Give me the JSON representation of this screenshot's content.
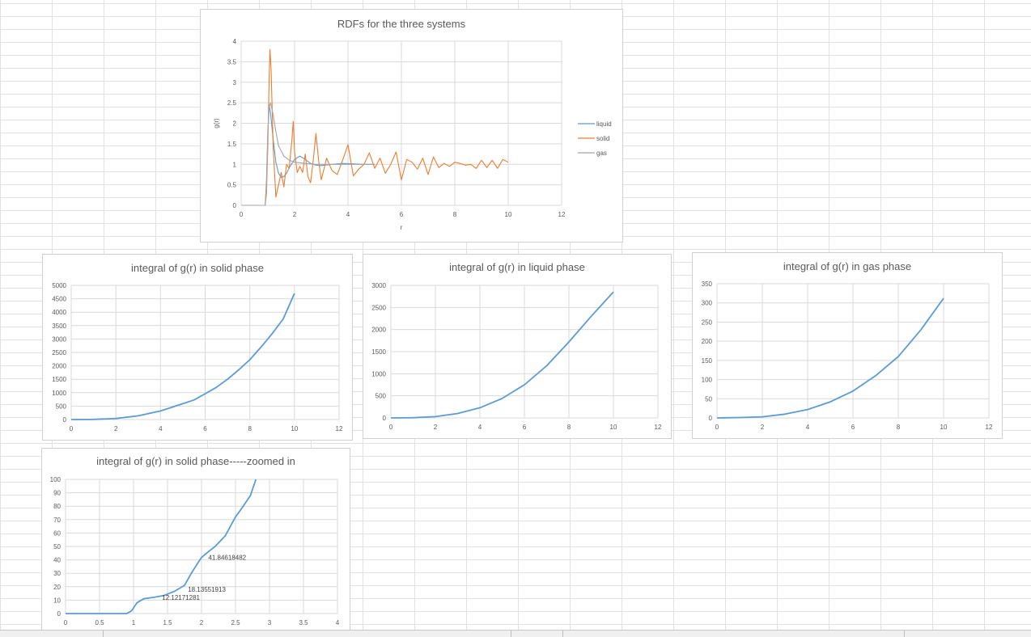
{
  "colors": {
    "liquid": "#5b9bd5",
    "solid": "#ed7d31",
    "gas": "#a5a5a5",
    "integral": "#5b9bd5",
    "gridline": "#d9d9d9",
    "axis_text": "#595959",
    "sheet_grid": "#e1e1e1"
  },
  "chart_data": [
    {
      "type": "line",
      "title": "RDFs for the three systems",
      "xlabel": "r",
      "ylabel": "g(r)",
      "xlim": [
        0,
        12
      ],
      "ylim": [
        0,
        4
      ],
      "x_ticks": [
        0,
        2,
        4,
        6,
        8,
        10,
        12
      ],
      "y_ticks": [
        0,
        0.5,
        1,
        1.5,
        2,
        2.5,
        3,
        3.5,
        4
      ],
      "grid": true,
      "legend": "right",
      "series": [
        {
          "name": "liquid",
          "color": "#5b9bd5",
          "x": [
            0,
            0.9,
            0.95,
            1.0,
            1.05,
            1.1,
            1.2,
            1.3,
            1.4,
            1.5,
            1.6,
            1.7,
            1.8,
            2.0,
            2.2,
            2.4,
            2.6,
            2.8,
            3.0,
            3.4,
            3.8,
            4.2,
            4.6,
            5.0
          ],
          "y": [
            0,
            0,
            0.6,
            1.8,
            2.45,
            2.25,
            1.6,
            1.05,
            0.78,
            0.68,
            0.7,
            0.78,
            0.92,
            1.12,
            1.2,
            1.12,
            1.02,
            0.98,
            0.97,
            1.0,
            1.02,
            1.01,
            1.0,
            1.0
          ]
        },
        {
          "name": "solid",
          "color": "#ed7d31",
          "x": [
            0,
            0.9,
            0.95,
            1.0,
            1.05,
            1.08,
            1.12,
            1.2,
            1.3,
            1.4,
            1.5,
            1.6,
            1.7,
            1.8,
            1.9,
            1.95,
            2.0,
            2.1,
            2.2,
            2.3,
            2.4,
            2.5,
            2.6,
            2.7,
            2.8,
            2.9,
            3.0,
            3.2,
            3.4,
            3.6,
            3.8,
            4.0,
            4.2,
            4.4,
            4.6,
            4.8,
            5.0,
            5.2,
            5.4,
            5.6,
            5.8,
            6.0,
            6.2,
            6.4,
            6.6,
            6.8,
            7.0,
            7.2,
            7.4,
            7.6,
            7.8,
            8.0,
            8.2,
            8.4,
            8.6,
            8.8,
            9.0,
            9.2,
            9.4,
            9.6,
            9.8,
            10.0
          ],
          "y": [
            0,
            0,
            0.3,
            1.5,
            3.2,
            3.8,
            3.3,
            1.4,
            0.2,
            0.5,
            0.8,
            0.45,
            1.0,
            0.9,
            1.6,
            2.05,
            1.3,
            0.8,
            0.95,
            0.8,
            1.25,
            0.7,
            0.55,
            1.1,
            1.75,
            1.1,
            0.62,
            1.15,
            0.85,
            0.75,
            1.1,
            1.48,
            0.72,
            0.88,
            1.0,
            1.28,
            0.9,
            1.15,
            0.78,
            1.0,
            1.3,
            0.62,
            1.12,
            1.05,
            0.88,
            1.15,
            0.75,
            1.18,
            0.92,
            1.02,
            0.95,
            1.05,
            1.02,
            0.98,
            1.0,
            0.9,
            1.1,
            0.92,
            1.1,
            0.9,
            1.12,
            1.05
          ]
        },
        {
          "name": "gas",
          "color": "#a5a5a5",
          "x": [
            0,
            0.9,
            0.95,
            1.0,
            1.05,
            1.1,
            1.2,
            1.3,
            1.4,
            1.6,
            1.8,
            2.0,
            2.4,
            2.8,
            3.2,
            4.0,
            5.0
          ],
          "y": [
            0,
            0,
            0.5,
            1.8,
            2.4,
            2.5,
            2.2,
            1.8,
            1.45,
            1.2,
            1.1,
            1.05,
            1.02,
            1.0,
            1.0,
            1.0,
            1.0
          ]
        }
      ]
    },
    {
      "type": "line",
      "title": "integral of g(r) in solid phase",
      "xlim": [
        0,
        12
      ],
      "ylim": [
        0,
        5000
      ],
      "x_ticks": [
        0,
        2,
        4,
        6,
        8,
        10,
        12
      ],
      "y_ticks": [
        0,
        500,
        1000,
        1500,
        2000,
        2500,
        3000,
        3500,
        4000,
        4500,
        5000
      ],
      "grid": true,
      "series": [
        {
          "color": "#5b9bd5",
          "x": [
            0,
            1,
            2,
            3,
            4,
            5,
            5.5,
            6,
            6.5,
            7,
            7.5,
            8,
            8.5,
            9,
            9.5,
            10
          ],
          "y": [
            0,
            5,
            40,
            140,
            320,
            590,
            730,
            960,
            1200,
            1500,
            1850,
            2230,
            2700,
            3200,
            3750,
            4700
          ]
        }
      ]
    },
    {
      "type": "line",
      "title": "integral of g(r) in liquid phase",
      "xlim": [
        0,
        12
      ],
      "ylim": [
        0,
        3000
      ],
      "x_ticks": [
        0,
        2,
        4,
        6,
        8,
        10,
        12
      ],
      "y_ticks": [
        0,
        500,
        1000,
        1500,
        2000,
        2500,
        3000
      ],
      "grid": true,
      "series": [
        {
          "color": "#5b9bd5",
          "x": [
            0,
            1,
            2,
            3,
            4,
            5,
            6,
            7,
            8,
            9,
            10
          ],
          "y": [
            0,
            5,
            30,
            100,
            230,
            440,
            750,
            1180,
            1720,
            2300,
            2850
          ]
        }
      ]
    },
    {
      "type": "line",
      "title": "integral of g(r) in gas phase",
      "xlim": [
        0,
        12
      ],
      "ylim": [
        0,
        350
      ],
      "x_ticks": [
        0,
        2,
        4,
        6,
        8,
        10,
        12
      ],
      "y_ticks": [
        0,
        50,
        100,
        150,
        200,
        250,
        300,
        350
      ],
      "grid": true,
      "series": [
        {
          "color": "#5b9bd5",
          "x": [
            0,
            1,
            2,
            3,
            4,
            5,
            6,
            7,
            8,
            9,
            10
          ],
          "y": [
            0,
            1,
            3,
            10,
            22,
            42,
            70,
            110,
            160,
            230,
            312
          ]
        }
      ]
    },
    {
      "type": "line",
      "title": "integral of g(r) in solid phase-----zoomed in",
      "xlim": [
        0,
        4
      ],
      "ylim": [
        0,
        100
      ],
      "x_ticks": [
        0,
        0.5,
        1,
        1.5,
        2,
        2.5,
        3,
        3.5,
        4
      ],
      "y_ticks": [
        0,
        10,
        20,
        30,
        40,
        50,
        60,
        70,
        80,
        90,
        100
      ],
      "grid": true,
      "series": [
        {
          "color": "#5b9bd5",
          "x": [
            0,
            0.9,
            0.97,
            1.05,
            1.15,
            1.3,
            1.45,
            1.6,
            1.75,
            1.85,
            1.95,
            2.0,
            2.1,
            2.2,
            2.35,
            2.5,
            2.6,
            2.72,
            2.8
          ],
          "y": [
            0,
            0,
            2,
            8,
            11,
            12.1,
            13.5,
            16.5,
            21,
            30,
            38,
            41.8,
            46,
            50,
            58,
            72,
            79,
            88,
            100
          ]
        }
      ],
      "annotations": [
        {
          "text": "41.84618482",
          "x": 2.1,
          "y": 41.8
        },
        {
          "text": "18.13551913",
          "x": 1.8,
          "y": 18.1
        },
        {
          "text": "12.12171281",
          "x": 1.42,
          "y": 12.1
        }
      ]
    }
  ]
}
